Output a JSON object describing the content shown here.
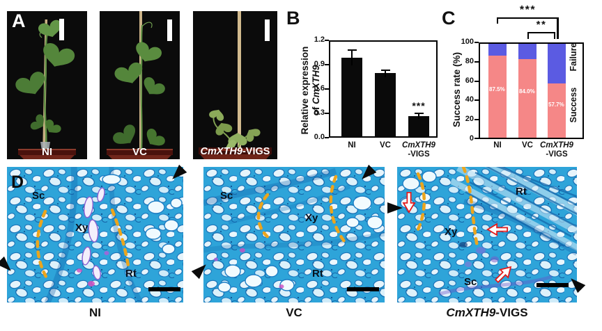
{
  "colors": {
    "success_pink": "#F58787",
    "failure_blue": "#5B5BE2",
    "dashed_graft_line_orange": "#ECA51D",
    "annotation_arrow_red": "#E31A1A",
    "bar_black": "#0A0A0A",
    "micrograph_stain_blue": "#2EA4D9"
  },
  "panelA": {
    "label": "A",
    "photos": [
      {
        "caption": "NI"
      },
      {
        "caption": "VC"
      },
      {
        "caption_gene": "CmXTH9",
        "caption_suffix": "-VIGS"
      }
    ]
  },
  "panelB": {
    "label": "B",
    "ylabel_line1": "Relative expression",
    "ylabel_line2_prefix": "of ",
    "ylabel_gene": "CmXTH9",
    "yticks": [
      "1.2",
      "0.9",
      "0.6",
      "0.3",
      "0.0"
    ],
    "significance": "***",
    "xticklabels": {
      "c1": "NI",
      "c2": "VC",
      "c3_gene": "CmXTH9",
      "c3_suffix": "-VIGS"
    }
  },
  "panelC": {
    "label": "C",
    "ylabel": "Success rate (%)",
    "yticks": [
      "100",
      "80",
      "60",
      "40",
      "20",
      "0"
    ],
    "sig_outer": "***",
    "sig_inner": "**",
    "legend_right": {
      "failure": "Failure",
      "success": "Success"
    },
    "xticklabels": {
      "c1": "NI",
      "c2": "VC",
      "c3_gene": "CmXTH9",
      "c3_suffix": "-VIGS"
    }
  },
  "panelD": {
    "label": "D",
    "micrographs": [
      {
        "caption": "NI",
        "labels": {
          "sc": "Sc",
          "xy": "Xy",
          "rt": "Rt"
        }
      },
      {
        "caption": "VC",
        "labels": {
          "sc": "Sc",
          "xy": "Xy",
          "rt": "Rt"
        }
      },
      {
        "caption_gene": "CmXTH9",
        "caption_suffix": "-VIGS",
        "labels": {
          "sc": "Sc",
          "xy": "Xy",
          "rt": "Rt"
        }
      }
    ]
  },
  "chart_data": [
    {
      "type": "bar",
      "panel": "B",
      "title": "",
      "ylabel": "Relative expression of CmXTH9",
      "xlabel": "",
      "categories": [
        "NI",
        "VC",
        "CmXTH9-VIGS"
      ],
      "values": [
        1.0,
        0.8,
        0.26
      ],
      "errors": [
        0.1,
        0.05,
        0.04
      ],
      "ylim": [
        0,
        1.2
      ],
      "yticks": [
        0.0,
        0.3,
        0.6,
        0.9,
        1.2
      ],
      "bar_color": "#0A0A0A",
      "grid": false,
      "significance": [
        {
          "category": "CmXTH9-VIGS",
          "label": "***"
        }
      ]
    },
    {
      "type": "bar",
      "subtype": "stacked_percent",
      "panel": "C",
      "title": "",
      "ylabel": "Success rate (%)",
      "xlabel": "",
      "categories": [
        "NI",
        "VC",
        "CmXTH9-VIGS"
      ],
      "series": [
        {
          "name": "Success",
          "color": "#F58787",
          "values": [
            87.5,
            84.0,
            57.7
          ]
        },
        {
          "name": "Failure",
          "color": "#5B5BE2",
          "values": [
            12.5,
            16.0,
            42.3
          ]
        }
      ],
      "value_labels": [
        "87.5%",
        "84.0%",
        "57.7%"
      ],
      "ylim": [
        0,
        100
      ],
      "yticks": [
        0,
        20,
        40,
        60,
        80,
        100
      ],
      "legend_position": "right-rotated",
      "grid": false,
      "significance": [
        {
          "from": "NI",
          "to": "CmXTH9-VIGS",
          "label": "***"
        },
        {
          "from": "VC",
          "to": "CmXTH9-VIGS",
          "label": "**"
        }
      ]
    }
  ]
}
